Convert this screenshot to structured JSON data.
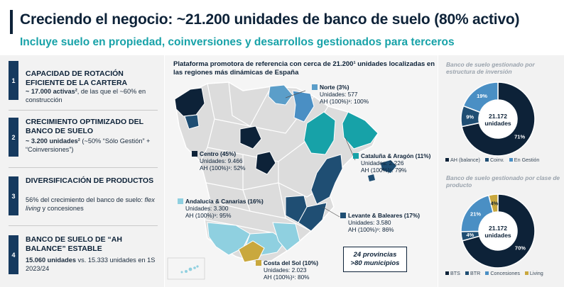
{
  "header": {
    "title": "Creciendo el negocio: ~21.200 unidades de banco de suelo (80% activo)",
    "subtitle": "Incluye suelo en propiedad, coinversiones y desarrollos gestionados para terceros"
  },
  "left": {
    "items": [
      {
        "num": "1",
        "heading": "CAPACIDAD DE ROTACIÓN EFICIENTE DE LA CARTERA",
        "body_bold": "~ 17.000 activas²",
        "body_rest": ", de las que el ~60% en construcción"
      },
      {
        "num": "2",
        "heading": "CRECIMIENTO OPTIMIZADO DEL BANCO DE SUELO",
        "body_bold": "~ 3.200 unidades²",
        "body_rest": " (~50% “Sólo Gestión” + “Coinversiones”)"
      },
      {
        "num": "3",
        "heading": "DIVERSIFICACIÓN DE PRODUCTOS",
        "body_pre": "56% del crecimiento del banco de suelo: ",
        "body_italic": "flex living",
        "body_rest": " y concesiones"
      },
      {
        "num": "4",
        "heading": "BANCO DE SUELO DE “AH BALANCE” ESTABLE",
        "body_bold": "15.060 unidades",
        "body_rest": " vs. 15.333 unidades en 1S 2023/24"
      }
    ]
  },
  "map": {
    "heading": "Plataforma promotora de referencia con cerca de 21.200¹ unidades localizadas en las regiones más dinámicas de España",
    "regions": [
      {
        "name": "Norte (3%)",
        "units": "Unidades: 577",
        "ah": "AH (100%)¹: 100%",
        "color": "#5b9ec9"
      },
      {
        "name": "Centro (45%)",
        "units": "Unidades: 9.466",
        "ah": "AH (100%)¹: 52%",
        "color": "#0d2238"
      },
      {
        "name": "Cataluña & Aragón (11%)",
        "units": "Unidades: 2.226",
        "ah": "AH (100%)¹: 79%",
        "color": "#17a2a8"
      },
      {
        "name": "Andalucía & Canarias (16%)",
        "units": "Unidades: 3.300",
        "ah": "AH (100%)¹: 95%",
        "color": "#8fd0e0"
      },
      {
        "name": "Levante & Baleares (17%)",
        "units": "Unidades: 3.580",
        "ah": "AH (100%)¹: 86%",
        "color": "#1f4e73"
      },
      {
        "name": "Costa del Sol (10%)",
        "units": "Unidades: 2.023",
        "ah": "AH (100%)¹: 80%",
        "color": "#c9a83e"
      }
    ],
    "provinces_line1": "24 provincias",
    "provinces_line2": ">80 municipios"
  },
  "chart_data": [
    {
      "type": "pie",
      "title": "Banco de suelo gestionado por estructura de inversión",
      "center_line1": "21.172",
      "center_line2": "unidades",
      "slices": [
        {
          "label": "AH (balance)",
          "value": 71,
          "display": "71%",
          "color": "#0d2238"
        },
        {
          "label": "Coinv.",
          "value": 9,
          "display": "9%",
          "color": "#1f4e73"
        },
        {
          "label": "En Gestión",
          "value": 19,
          "display": "19%",
          "color": "#4a8fc4"
        }
      ]
    },
    {
      "type": "pie",
      "title": "Banco de suelo gestionado por clase de producto",
      "center_line1": "21.172",
      "center_line2": "unidades",
      "slices": [
        {
          "label": "BTS",
          "value": 70,
          "display": "70%",
          "color": "#0d2238"
        },
        {
          "label": "BTR",
          "value": 4,
          "display": "4%",
          "color": "#1f4e73"
        },
        {
          "label": "Concesiones",
          "value": 21,
          "display": "21%",
          "color": "#4a8fc4"
        },
        {
          "label": "Living",
          "value": 4,
          "display": "4%",
          "color": "#c9a83e"
        }
      ]
    }
  ]
}
